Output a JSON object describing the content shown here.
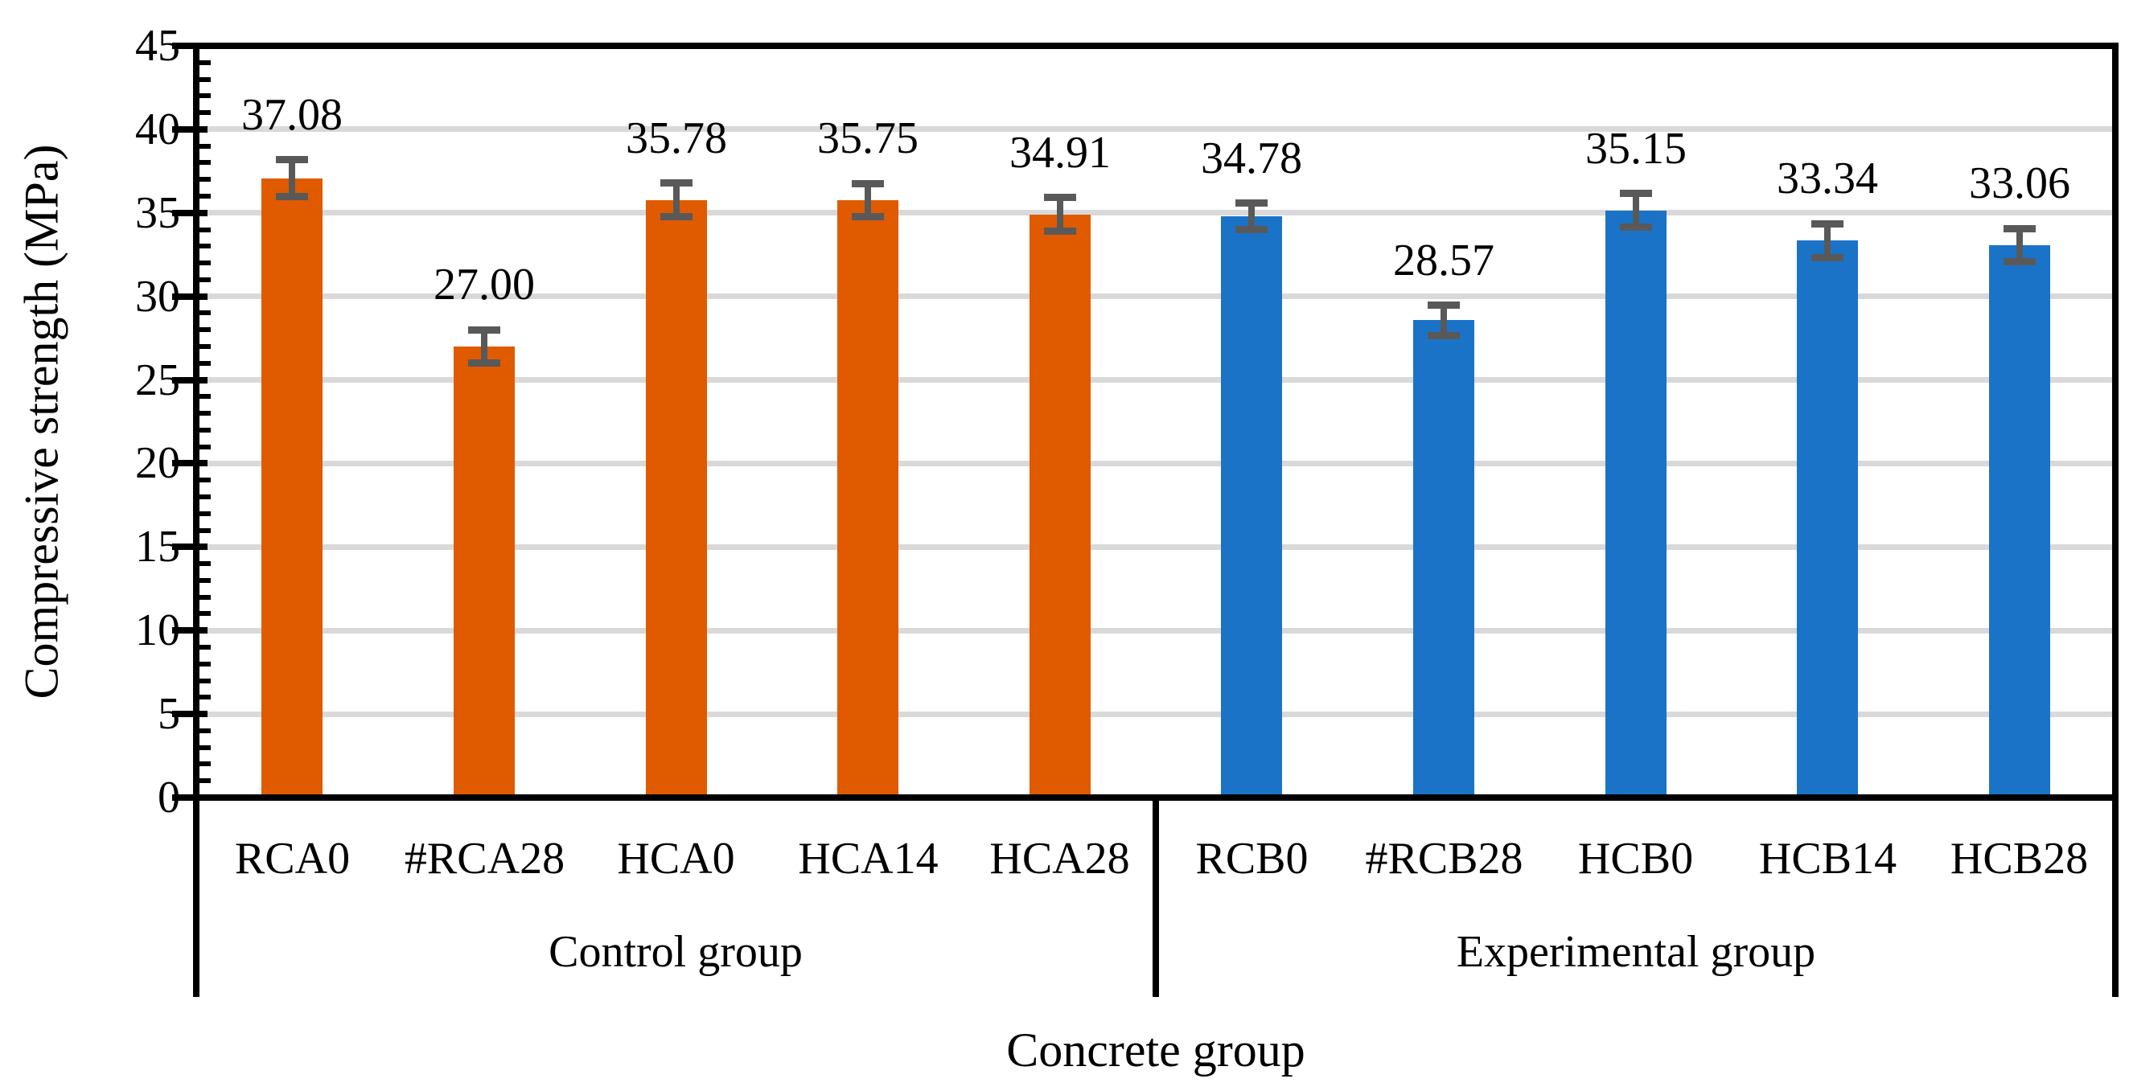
{
  "chart_data": {
    "type": "bar",
    "title": "",
    "ylabel": "Compressive strength (MPa)",
    "xlabel": "Concrete group",
    "ylim": [
      0,
      45
    ],
    "y_major_step": 5,
    "y_minor_step": 1,
    "y_tick_labels": [
      "0",
      "5",
      "10",
      "15",
      "20",
      "25",
      "30",
      "35",
      "40",
      "45"
    ],
    "grid": "horizontal-major-light-gray",
    "legend": "none",
    "categories": [
      "RCA0",
      "#RCA28",
      "HCA0",
      "HCA14",
      "HCA28",
      "RCB0",
      "#RCB28",
      "HCB0",
      "HCB14",
      "HCB28"
    ],
    "values": [
      37.08,
      27.0,
      35.78,
      35.75,
      34.91,
      34.78,
      28.57,
      35.15,
      33.34,
      33.06
    ],
    "value_labels": [
      "37.08",
      "27.00",
      "35.78",
      "35.75",
      "34.91",
      "34.78",
      "28.57",
      "35.15",
      "33.34",
      "33.06"
    ],
    "errors": [
      1.1,
      1.0,
      1.0,
      1.0,
      1.0,
      0.8,
      0.9,
      1.0,
      1.0,
      1.0
    ],
    "groups": [
      {
        "label": "Control group",
        "span": [
          0,
          4
        ],
        "color": "#E05A00"
      },
      {
        "label": "Experimental group",
        "span": [
          5,
          9
        ],
        "color": "#1B73C8"
      }
    ],
    "colors": {
      "control_bar": "#E05A00",
      "experimental_bar": "#1B73C8",
      "error_bar": "#595959",
      "gridline": "#D9D9D9",
      "axis": "#000000",
      "text": "#000000",
      "background": "#FFFFFF"
    }
  }
}
